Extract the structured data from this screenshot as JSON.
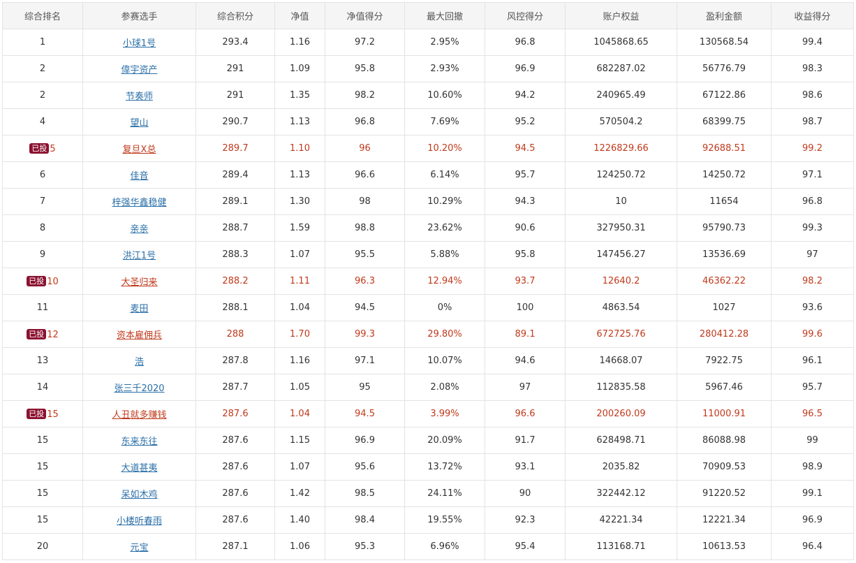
{
  "table": {
    "headers": [
      "综合排名",
      "参赛选手",
      "综合积分",
      "净值",
      "净值得分",
      "最大回撤",
      "风控得分",
      "账户权益",
      "盈利金额",
      "收益得分"
    ],
    "invested_badge": "已投",
    "rows": [
      {
        "rank": "1",
        "invested": false,
        "player": "小球1号",
        "score": "293.4",
        "nav": "1.16",
        "nav_score": "97.2",
        "max_drawdown": "2.95%",
        "risk_score": "96.8",
        "equity": "1045868.65",
        "profit": "130568.54",
        "return_score": "99.4"
      },
      {
        "rank": "2",
        "invested": false,
        "player": "偉宇资产",
        "score": "291",
        "nav": "1.09",
        "nav_score": "95.8",
        "max_drawdown": "2.93%",
        "risk_score": "96.9",
        "equity": "682287.02",
        "profit": "56776.79",
        "return_score": "98.3"
      },
      {
        "rank": "2",
        "invested": false,
        "player": "节奏师",
        "score": "291",
        "nav": "1.35",
        "nav_score": "98.2",
        "max_drawdown": "10.60%",
        "risk_score": "94.2",
        "equity": "240965.49",
        "profit": "67122.86",
        "return_score": "98.6"
      },
      {
        "rank": "4",
        "invested": false,
        "player": "望山",
        "score": "290.7",
        "nav": "1.13",
        "nav_score": "96.8",
        "max_drawdown": "7.69%",
        "risk_score": "95.2",
        "equity": "570504.2",
        "profit": "68399.75",
        "return_score": "98.7"
      },
      {
        "rank": "5",
        "invested": true,
        "player": "复旦X总",
        "score": "289.7",
        "nav": "1.10",
        "nav_score": "96",
        "max_drawdown": "10.20%",
        "risk_score": "94.5",
        "equity": "1226829.66",
        "profit": "92688.51",
        "return_score": "99.2"
      },
      {
        "rank": "6",
        "invested": false,
        "player": "佳音",
        "score": "289.4",
        "nav": "1.13",
        "nav_score": "96.6",
        "max_drawdown": "6.14%",
        "risk_score": "95.7",
        "equity": "124250.72",
        "profit": "14250.72",
        "return_score": "97.1"
      },
      {
        "rank": "7",
        "invested": false,
        "player": "梓强华鑫稳健",
        "score": "289.1",
        "nav": "1.30",
        "nav_score": "98",
        "max_drawdown": "10.29%",
        "risk_score": "94.3",
        "equity": "10",
        "profit": "11654",
        "return_score": "96.8"
      },
      {
        "rank": "8",
        "invested": false,
        "player": "亲亲",
        "score": "288.7",
        "nav": "1.59",
        "nav_score": "98.8",
        "max_drawdown": "23.62%",
        "risk_score": "90.6",
        "equity": "327950.31",
        "profit": "95790.73",
        "return_score": "99.3"
      },
      {
        "rank": "9",
        "invested": false,
        "player": "洪江1号",
        "score": "288.3",
        "nav": "1.07",
        "nav_score": "95.5",
        "max_drawdown": "5.88%",
        "risk_score": "95.8",
        "equity": "147456.27",
        "profit": "13536.69",
        "return_score": "97"
      },
      {
        "rank": "10",
        "invested": true,
        "player": "大圣归来",
        "score": "288.2",
        "nav": "1.11",
        "nav_score": "96.3",
        "max_drawdown": "12.94%",
        "risk_score": "93.7",
        "equity": "12640.2",
        "profit": "46362.22",
        "return_score": "98.2"
      },
      {
        "rank": "11",
        "invested": false,
        "player": "麦田",
        "score": "288.1",
        "nav": "1.04",
        "nav_score": "94.5",
        "max_drawdown": "0%",
        "risk_score": "100",
        "equity": "4863.54",
        "profit": "1027",
        "return_score": "93.6"
      },
      {
        "rank": "12",
        "invested": true,
        "player": "资本雇佣兵",
        "score": "288",
        "nav": "1.70",
        "nav_score": "99.3",
        "max_drawdown": "29.80%",
        "risk_score": "89.1",
        "equity": "672725.76",
        "profit": "280412.28",
        "return_score": "99.6"
      },
      {
        "rank": "13",
        "invested": false,
        "player": "浩",
        "score": "287.8",
        "nav": "1.16",
        "nav_score": "97.1",
        "max_drawdown": "10.07%",
        "risk_score": "94.6",
        "equity": "14668.07",
        "profit": "7922.75",
        "return_score": "96.1"
      },
      {
        "rank": "14",
        "invested": false,
        "player": "张三千2020",
        "score": "287.7",
        "nav": "1.05",
        "nav_score": "95",
        "max_drawdown": "2.08%",
        "risk_score": "97",
        "equity": "112835.58",
        "profit": "5967.46",
        "return_score": "95.7"
      },
      {
        "rank": "15",
        "invested": true,
        "player": "人丑就多赚钱",
        "score": "287.6",
        "nav": "1.04",
        "nav_score": "94.5",
        "max_drawdown": "3.99%",
        "risk_score": "96.6",
        "equity": "200260.09",
        "profit": "11000.91",
        "return_score": "96.5"
      },
      {
        "rank": "15",
        "invested": false,
        "player": "东来东往",
        "score": "287.6",
        "nav": "1.15",
        "nav_score": "96.9",
        "max_drawdown": "20.09%",
        "risk_score": "91.7",
        "equity": "628498.71",
        "profit": "86088.98",
        "return_score": "99"
      },
      {
        "rank": "15",
        "invested": false,
        "player": "大道甚夷",
        "score": "287.6",
        "nav": "1.07",
        "nav_score": "95.6",
        "max_drawdown": "13.72%",
        "risk_score": "93.1",
        "equity": "2035.82",
        "profit": "70909.53",
        "return_score": "98.9"
      },
      {
        "rank": "15",
        "invested": false,
        "player": "呆如木鸡",
        "score": "287.6",
        "nav": "1.42",
        "nav_score": "98.5",
        "max_drawdown": "24.11%",
        "risk_score": "90",
        "equity": "322442.12",
        "profit": "91220.52",
        "return_score": "99.1"
      },
      {
        "rank": "15",
        "invested": false,
        "player": "小楼听春雨",
        "score": "287.6",
        "nav": "1.40",
        "nav_score": "98.4",
        "max_drawdown": "19.55%",
        "risk_score": "92.3",
        "equity": "42221.34",
        "profit": "12221.34",
        "return_score": "96.9"
      },
      {
        "rank": "20",
        "invested": false,
        "player": "元宝",
        "score": "287.1",
        "nav": "1.06",
        "nav_score": "95.3",
        "max_drawdown": "6.96%",
        "risk_score": "95.4",
        "equity": "113168.71",
        "profit": "10613.53",
        "return_score": "96.4"
      }
    ]
  },
  "colors": {
    "invested_text": "#c0391b",
    "badge_background": "#8b1230",
    "link": "#2a6fa8",
    "header_background": "#f5f5f5"
  }
}
